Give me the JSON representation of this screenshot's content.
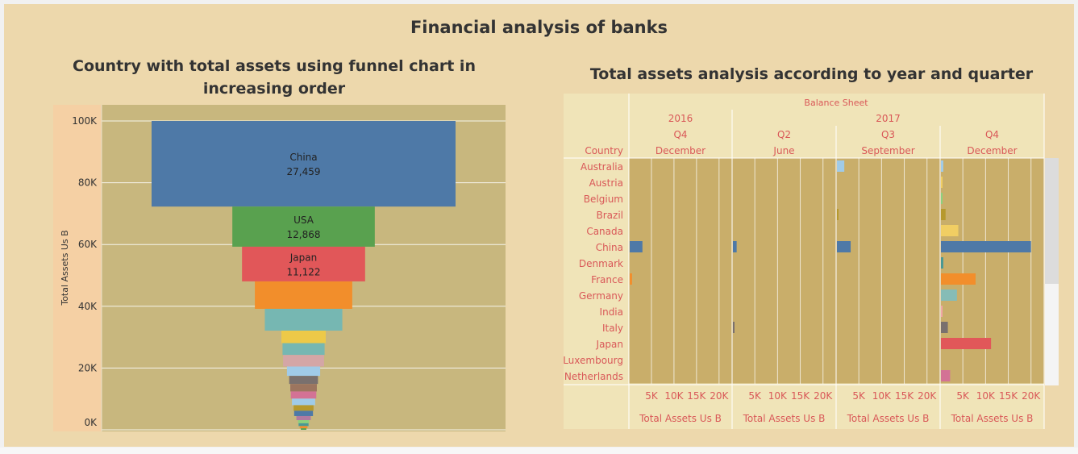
{
  "dashboard": {
    "title": "Financial analysis of banks"
  },
  "colors": {
    "background": "#edd8ac",
    "plot_background": "#c8b77e",
    "axis_panel": "#f5d0a4",
    "header_background": "#f0e4b8",
    "header_text": "#d95858"
  },
  "chart_data": [
    {
      "type": "bar",
      "subtype": "funnel",
      "title": "Country with total assets using funnel chart in increasing order",
      "xlabel": "",
      "ylabel": "Total Assets Us B",
      "ylim": [
        0,
        100000
      ],
      "yticks": [
        0,
        20000,
        40000,
        60000,
        80000,
        100000
      ],
      "ytick_labels": [
        "0K",
        "20K",
        "40K",
        "60K",
        "80K",
        "100K"
      ],
      "grid": true,
      "segments": [
        {
          "label": "China",
          "value": 27459,
          "value_label": "27,459",
          "color": "#4e79a7"
        },
        {
          "label": "USA",
          "value": 12868,
          "value_label": "12,868",
          "color": "#59a14f"
        },
        {
          "label": "Japan",
          "value": 11122,
          "value_label": "11,122",
          "color": "#e15759"
        },
        {
          "label": "",
          "value": 8800,
          "value_label": "",
          "color": "#f28e2b"
        },
        {
          "label": "",
          "value": 7000,
          "value_label": "",
          "color": "#76b7b2"
        },
        {
          "label": "",
          "value": 4000,
          "value_label": "",
          "color": "#edc948"
        },
        {
          "label": "",
          "value": 3800,
          "value_label": "",
          "color": "#76b7b2"
        },
        {
          "label": "",
          "value": 3700,
          "value_label": "",
          "color": "#d4a6a6"
        },
        {
          "label": "",
          "value": 3000,
          "value_label": "",
          "color": "#a0cbe8"
        },
        {
          "label": "",
          "value": 2600,
          "value_label": "",
          "color": "#79706e"
        },
        {
          "label": "",
          "value": 2400,
          "value_label": "",
          "color": "#9c755f"
        },
        {
          "label": "",
          "value": 2300,
          "value_label": "",
          "color": "#d37295"
        },
        {
          "label": "",
          "value": 2100,
          "value_label": "",
          "color": "#a0cbe8"
        },
        {
          "label": "",
          "value": 1800,
          "value_label": "",
          "color": "#b6992d"
        },
        {
          "label": "",
          "value": 1700,
          "value_label": "",
          "color": "#4e79a7"
        },
        {
          "label": "",
          "value": 1300,
          "value_label": "",
          "color": "#b07aa1"
        },
        {
          "label": "",
          "value": 1000,
          "value_label": "",
          "color": "#8cd17d"
        },
        {
          "label": "",
          "value": 900,
          "value_label": "",
          "color": "#499894"
        },
        {
          "label": "",
          "value": 700,
          "value_label": "",
          "color": "#f28e2b"
        },
        {
          "label": "",
          "value": 500,
          "value_label": "",
          "color": "#59a14f"
        }
      ]
    },
    {
      "type": "bar",
      "subtype": "horizontal-small-multiples",
      "title": "Total assets analysis according to year and quarter",
      "header_top": "Balance Sheet",
      "row_header": "Country",
      "xlabel": "Total Assets Us B",
      "xlim": [
        0,
        22000
      ],
      "xticks": [
        5000,
        10000,
        15000,
        20000
      ],
      "xtick_labels": [
        "5K",
        "10K",
        "15K",
        "20K"
      ],
      "years": [
        {
          "label": "2016",
          "span": 1
        },
        {
          "label": "2017",
          "span": 3
        }
      ],
      "panels": [
        {
          "quarter": "Q4",
          "month": "December"
        },
        {
          "quarter": "Q2",
          "month": "June"
        },
        {
          "quarter": "Q3",
          "month": "September"
        },
        {
          "quarter": "Q4",
          "month": "December"
        }
      ],
      "countries": [
        "Australia",
        "Austria",
        "Belgium",
        "Brazil",
        "Canada",
        "China",
        "Denmark",
        "France",
        "Germany",
        "India",
        "Italy",
        "Japan",
        "Luxembourg",
        "Netherlands"
      ],
      "country_colors": [
        "#a0cbe8",
        "#f1ce63",
        "#8cd17d",
        "#b6992d",
        "#f1ce63",
        "#4e79a7",
        "#499894",
        "#f28e2b",
        "#86bcb6",
        "#f1a6a6",
        "#79706e",
        "#e15759",
        "#b6992d",
        "#d37295"
      ],
      "series": [
        {
          "name": "2016 Q4 December",
          "values": [
            0,
            0,
            0,
            0,
            0,
            3000,
            0,
            700,
            0,
            0,
            0,
            0,
            0,
            0
          ]
        },
        {
          "name": "2017 Q2 June",
          "values": [
            0,
            0,
            0,
            0,
            0,
            1000,
            0,
            0,
            0,
            0,
            300,
            0,
            0,
            0
          ]
        },
        {
          "name": "2017 Q3 September",
          "values": [
            1800,
            0,
            0,
            400,
            0,
            3200,
            0,
            0,
            0,
            0,
            0,
            0,
            0,
            0
          ]
        },
        {
          "name": "2017 Q4 December",
          "values": [
            700,
            300,
            300,
            1200,
            4000,
            20000,
            700,
            7800,
            3700,
            300,
            1700,
            11200,
            0,
            2200
          ]
        }
      ]
    }
  ]
}
